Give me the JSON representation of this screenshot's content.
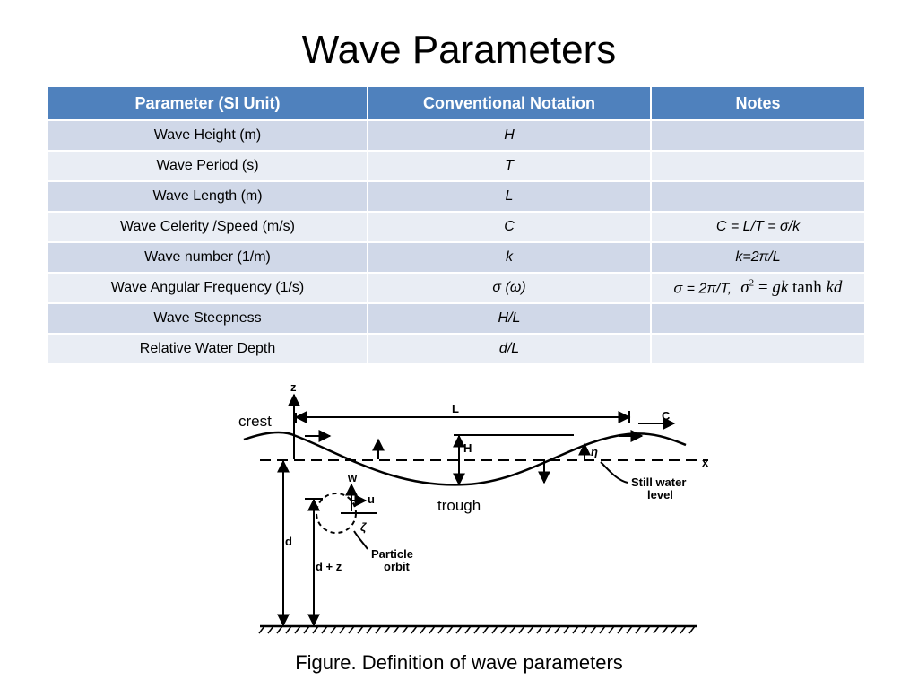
{
  "title": "Wave Parameters",
  "table": {
    "headers": [
      "Parameter (SI Unit)",
      "Conventional Notation",
      "Notes"
    ],
    "rows": [
      {
        "param": "Wave Height (m)",
        "notation": "H",
        "notes": ""
      },
      {
        "param": "Wave Period (s)",
        "notation": "T",
        "notes": ""
      },
      {
        "param": "Wave Length (m)",
        "notation": "L",
        "notes": ""
      },
      {
        "param": "Wave Celerity /Speed (m/s)",
        "notation": "C",
        "notes": "C = L/T = σ/k"
      },
      {
        "param": "Wave number (1/m)",
        "notation": "k",
        "notes": "k=2π/L"
      },
      {
        "param": "Wave Angular Frequency (1/s)",
        "notation": "σ (ω)",
        "notes": "σ = 2π/T,"
      },
      {
        "param": "Wave Steepness",
        "notation": "H/L",
        "notes": ""
      },
      {
        "param": "Relative Water Depth",
        "notation": "d/L",
        "notes": ""
      }
    ],
    "equation": {
      "lhs": "σ",
      "exp": "2",
      "rhs_g": "gk",
      "fn": "tanh",
      "arg": "kd"
    }
  },
  "figure": {
    "crest_label": "crest",
    "trough_label": "trough",
    "labels": {
      "z": "z",
      "x": "x",
      "L": "L",
      "C": "C",
      "H": "H",
      "eta": "η",
      "w": "w",
      "u": "u",
      "zeta": "ζ",
      "d": "d",
      "d_plus_z": "d + z",
      "still_water_1": "Still water",
      "still_water_2": "level",
      "particle_1": "Particle",
      "particle_2": "orbit"
    },
    "caption": "Figure. Definition of wave parameters"
  }
}
